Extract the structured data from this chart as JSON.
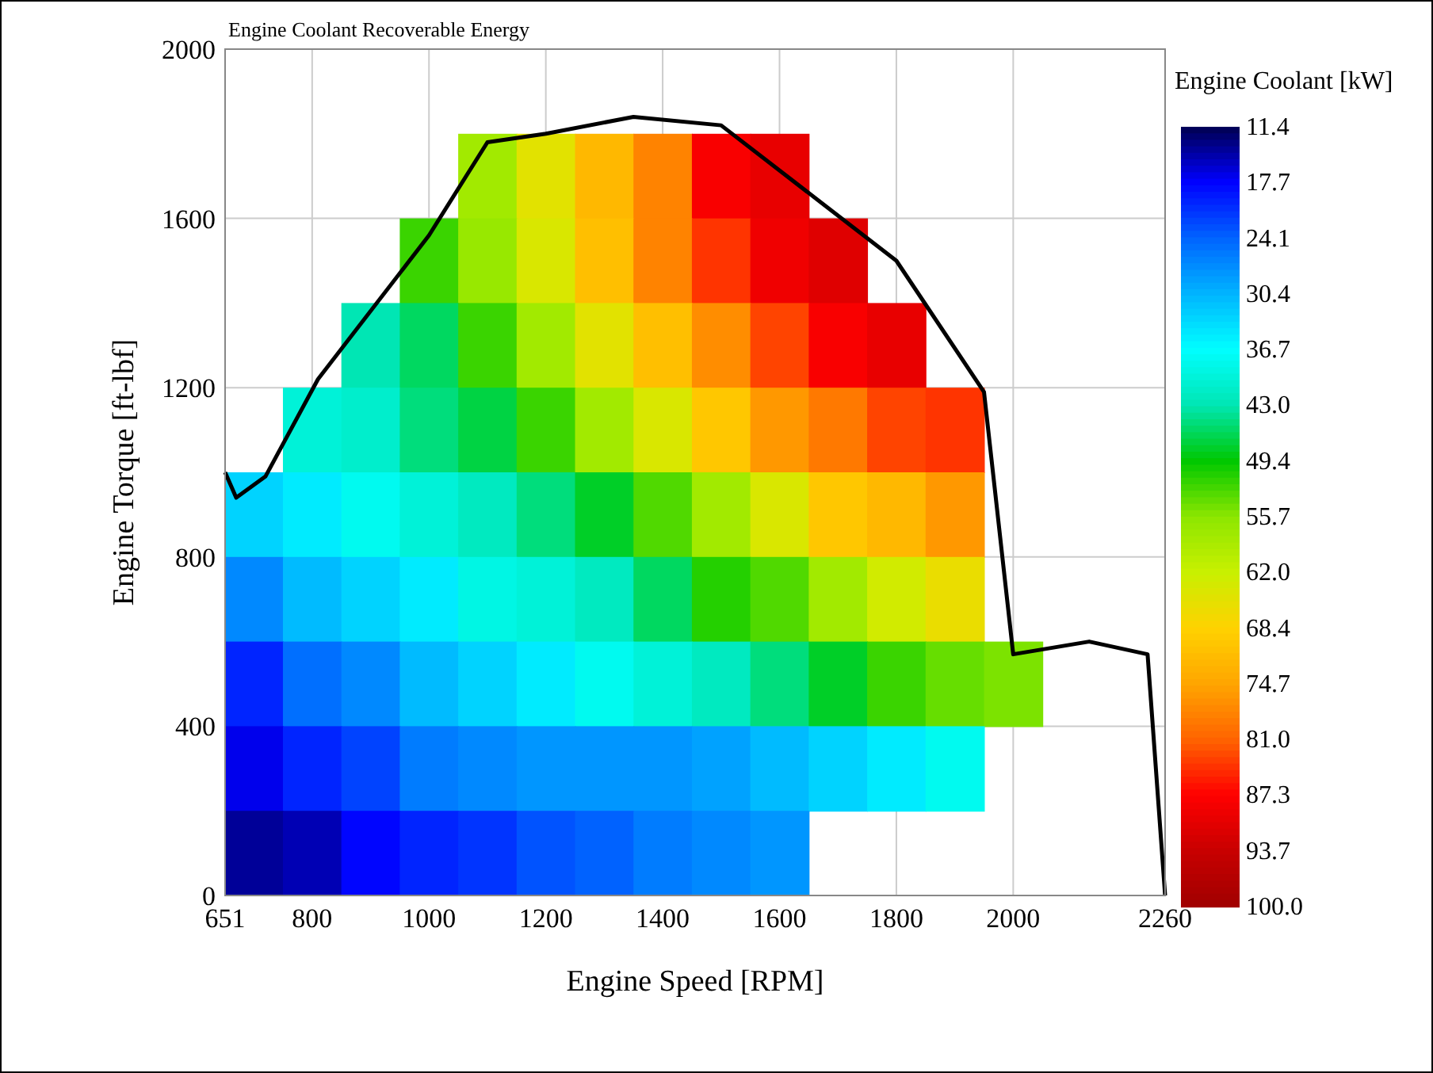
{
  "chart_data": {
    "type": "heatmap",
    "title": "Engine Coolant Recoverable Energy",
    "xlabel": "Engine Speed [RPM]",
    "ylabel": "Engine Torque [ft-lbf]",
    "clabel": "Engine Coolant [kW]",
    "x": [
      700,
      800,
      900,
      1000,
      1100,
      1200,
      1300,
      1400,
      1500,
      1600,
      1700,
      1800,
      1900,
      2000
    ],
    "y": [
      1700,
      1500,
      1300,
      1100,
      900,
      700,
      500,
      300,
      100
    ],
    "cells": [
      [
        null,
        null,
        null,
        null,
        58,
        65,
        72,
        78,
        88,
        90,
        null,
        null,
        null,
        null
      ],
      [
        null,
        null,
        null,
        52,
        57,
        64,
        71,
        78,
        84,
        89,
        91,
        null,
        null,
        null
      ],
      [
        null,
        null,
        43,
        46,
        52,
        58,
        65,
        71,
        77,
        83,
        88,
        90,
        null,
        null
      ],
      [
        null,
        40,
        41,
        45,
        47,
        52,
        58,
        64,
        70,
        76,
        79,
        83,
        84,
        null
      ],
      [
        33,
        35,
        38,
        40,
        42,
        45,
        48,
        53,
        58,
        64,
        70,
        72,
        76,
        null
      ],
      [
        27,
        31,
        33,
        35,
        39,
        40,
        42,
        46,
        51,
        53,
        58,
        63,
        66,
        null
      ],
      [
        20,
        25,
        27,
        31,
        33,
        35,
        38,
        40,
        42,
        45,
        48,
        52,
        54,
        55
      ],
      [
        17,
        20,
        22,
        26,
        27,
        28,
        28,
        28,
        29,
        31,
        33,
        35,
        38,
        null
      ],
      [
        14,
        15,
        18,
        20,
        21,
        23,
        24,
        26,
        27,
        28,
        null,
        null,
        null,
        null
      ]
    ],
    "clim": [
      11.4,
      100.0
    ],
    "cticks": [
      11.4,
      17.7,
      24.1,
      30.4,
      36.7,
      {
        "value": 43,
        "label": "43.0"
      },
      49.4,
      55.7,
      {
        "value": 62,
        "label": "62.0"
      },
      68.4,
      74.7,
      {
        "value": 81,
        "label": "81.0"
      },
      87.3,
      93.7,
      {
        "value": 100,
        "label": "100.0"
      }
    ],
    "colors": [
      "#000050",
      "#0000ff",
      "#0064ff",
      "#00b4ff",
      "#00ffff",
      "#00e6b4",
      "#00c800",
      "#8ce600",
      "#c8f000",
      "#ffd200",
      "#ffa500",
      "#ff6400",
      "#ff0000",
      "#c80000",
      "#a00000"
    ],
    "series": [
      {
        "type": "line",
        "color": "#000000",
        "x": [
          651,
          670,
          720,
          810,
          1000,
          1100,
          1200,
          1350,
          1500,
          1800,
          1950,
          2000,
          2130,
          2230,
          2260
        ],
        "values": [
          1000,
          940,
          990,
          1220,
          1560,
          1780,
          1800,
          1840,
          1820,
          1500,
          1190,
          570,
          600,
          570,
          0
        ]
      }
    ],
    "xlim": [
      651,
      2260
    ],
    "xticks": [
      651,
      800,
      1000,
      1200,
      1400,
      1600,
      1800,
      2000,
      2260
    ],
    "ylim": [
      0,
      2000
    ],
    "yticks": [
      0,
      400,
      800,
      1200,
      1600,
      2000
    ],
    "grid": true
  }
}
